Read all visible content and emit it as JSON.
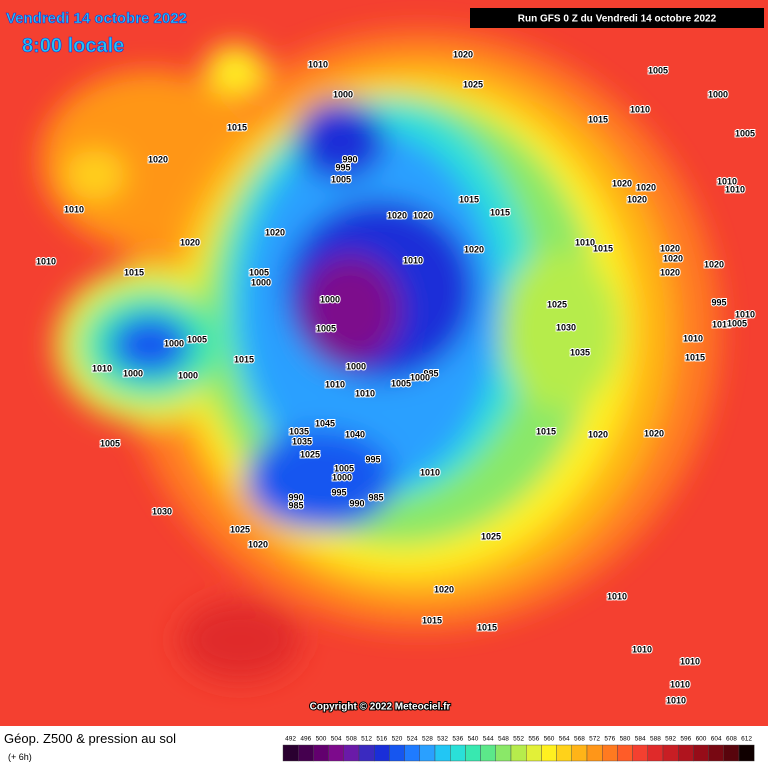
{
  "header": {
    "date": "Vendredi 14 octobre 2022",
    "time": "8:00 locale",
    "run": "Run GFS 0 Z du Vendredi 14 octobre 2022"
  },
  "copyright": "Copyright © 2022 Meteociel.fr",
  "legend": {
    "title": "Géop. Z500 & pression au sol",
    "step": "(+ 6h)",
    "scale": [
      492,
      496,
      500,
      504,
      508,
      512,
      516,
      520,
      524,
      528,
      532,
      536,
      540,
      544,
      548,
      552,
      556,
      560,
      564,
      568,
      572,
      576,
      580,
      584,
      588,
      592,
      596,
      600,
      604,
      608,
      612
    ],
    "colors": [
      "#2a0030",
      "#45004f",
      "#62006e",
      "#7d0a8c",
      "#6a1aa8",
      "#3a2ac0",
      "#1a2ed8",
      "#1656f0",
      "#1f7bff",
      "#2aa0ff",
      "#22c6f4",
      "#2ae0d8",
      "#38e8b0",
      "#5ce88a",
      "#8ae868",
      "#b6ec4c",
      "#e2f038",
      "#fff020",
      "#ffd21a",
      "#ffb418",
      "#ff9618",
      "#ff7a20",
      "#ff5c28",
      "#f44030",
      "#e02a2a",
      "#c81e24",
      "#b0141e",
      "#960c18",
      "#780812",
      "#58040c",
      "#100000"
    ]
  },
  "pressure_labels": [
    1010,
    1020,
    1005,
    1025,
    1000,
    1000,
    1010,
    1015,
    1015,
    1005,
    1020,
    990,
    995,
    1005,
    1020,
    1020,
    1010,
    1010,
    1015,
    1015,
    1020,
    1010,
    1020,
    1020,
    1020,
    1020,
    1010,
    1015,
    1020,
    1020,
    1010,
    1010,
    1020,
    1020,
    1015,
    1005,
    1000,
    1020,
    1000,
    1025,
    995,
    1010,
    1010,
    1005,
    1005,
    1030,
    1005,
    1000,
    1010,
    1015,
    1035,
    1015,
    1000,
    985,
    1010,
    1000,
    1000,
    1000,
    1005,
    1010,
    1010,
    1005,
    1015,
    1020,
    1020,
    1045,
    1035,
    1040,
    1035,
    1025,
    995,
    1005,
    1010,
    1000,
    995,
    985,
    990,
    985,
    990,
    1030,
    1025,
    1020,
    1025,
    1020,
    1010,
    1015,
    1015,
    1010,
    1010,
    1010,
    1010
  ]
}
